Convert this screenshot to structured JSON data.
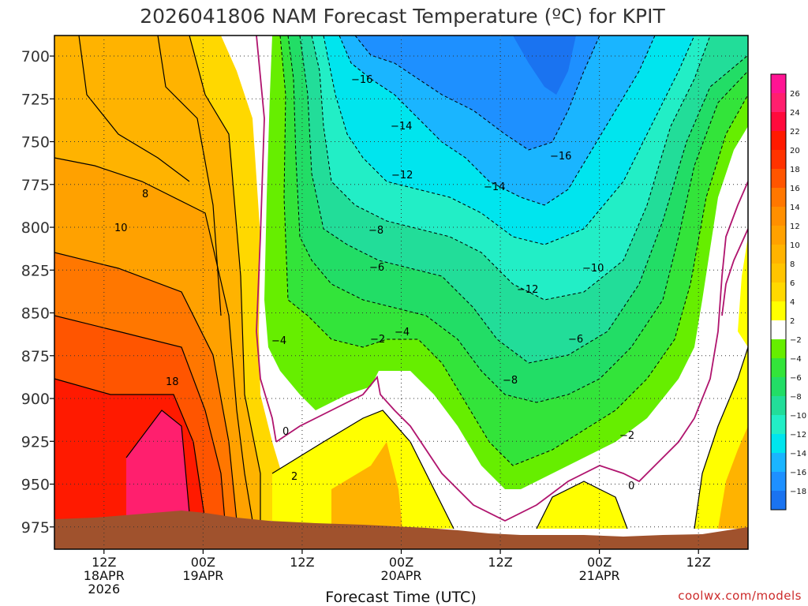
{
  "chart_data": {
    "type": "contour",
    "title": "2026041806 NAM Forecast Temperature (ºC) for KPIT",
    "xlabel": "Forecast Time (UTC)",
    "ylabel": "Pressure (hPa)",
    "credit": "coolwx.com/models",
    "y_ticks": [
      "700",
      "725",
      "750",
      "775",
      "800",
      "825",
      "850",
      "875",
      "900",
      "925",
      "950",
      "975"
    ],
    "y_values": [
      700,
      725,
      750,
      775,
      800,
      825,
      850,
      875,
      900,
      925,
      950,
      975
    ],
    "ylim": [
      988,
      688
    ],
    "xlim_hours": [
      0,
      84
    ],
    "x_ticks": [
      {
        "hour": 6,
        "lines": [
          "12Z",
          "18APR",
          "2026"
        ]
      },
      {
        "hour": 18,
        "lines": [
          "00Z",
          "19APR"
        ]
      },
      {
        "hour": 30,
        "lines": [
          "12Z"
        ]
      },
      {
        "hour": 42,
        "lines": [
          "00Z",
          "20APR"
        ]
      },
      {
        "hour": 54,
        "lines": [
          "12Z"
        ]
      },
      {
        "hour": 66,
        "lines": [
          "00Z",
          "21APR"
        ]
      },
      {
        "hour": 78,
        "lines": [
          "12Z"
        ]
      }
    ],
    "colorbar": {
      "labels": [
        "26",
        "24",
        "22",
        "20",
        "18",
        "16",
        "14",
        "12",
        "10",
        "8",
        "6",
        "4",
        "2",
        "−2",
        "−4",
        "−6",
        "−8",
        "−10",
        "−12",
        "−14",
        "−16",
        "−18"
      ],
      "colors": [
        "#ff1493",
        "#ff1f6e",
        "#ff0a3c",
        "#ff1a00",
        "#ff3300",
        "#ff5500",
        "#ff7700",
        "#ff8f00",
        "#ffa100",
        "#ffb300",
        "#ffc400",
        "#ffd800",
        "#ffff00",
        "#ffffff",
        "#66ee00",
        "#33e43a",
        "#22dd66",
        "#22dd99",
        "#22eec6",
        "#00e5ee",
        "#1ab5ff",
        "#1e90ff",
        "#1a73f0"
      ]
    },
    "contour_labels": [
      "−16",
      "−14",
      "−16",
      "−12",
      "−14",
      "−8",
      "−10",
      "−6",
      "−12",
      "−4",
      "−2",
      "−4",
      "−6",
      "−8",
      "−2",
      "0",
      "0",
      "2",
      "8",
      "10",
      "18"
    ],
    "bands": [
      {
        "name": "warm-ridge",
        "fill": "#ffd800"
      },
      {
        "name": "orange",
        "fill": "#ffa100"
      },
      {
        "name": "red",
        "fill": "#ff3300"
      },
      {
        "name": "cold-green",
        "fill": "#22dd66"
      },
      {
        "name": "cold-blue",
        "fill": "#1e90ff"
      }
    ]
  }
}
